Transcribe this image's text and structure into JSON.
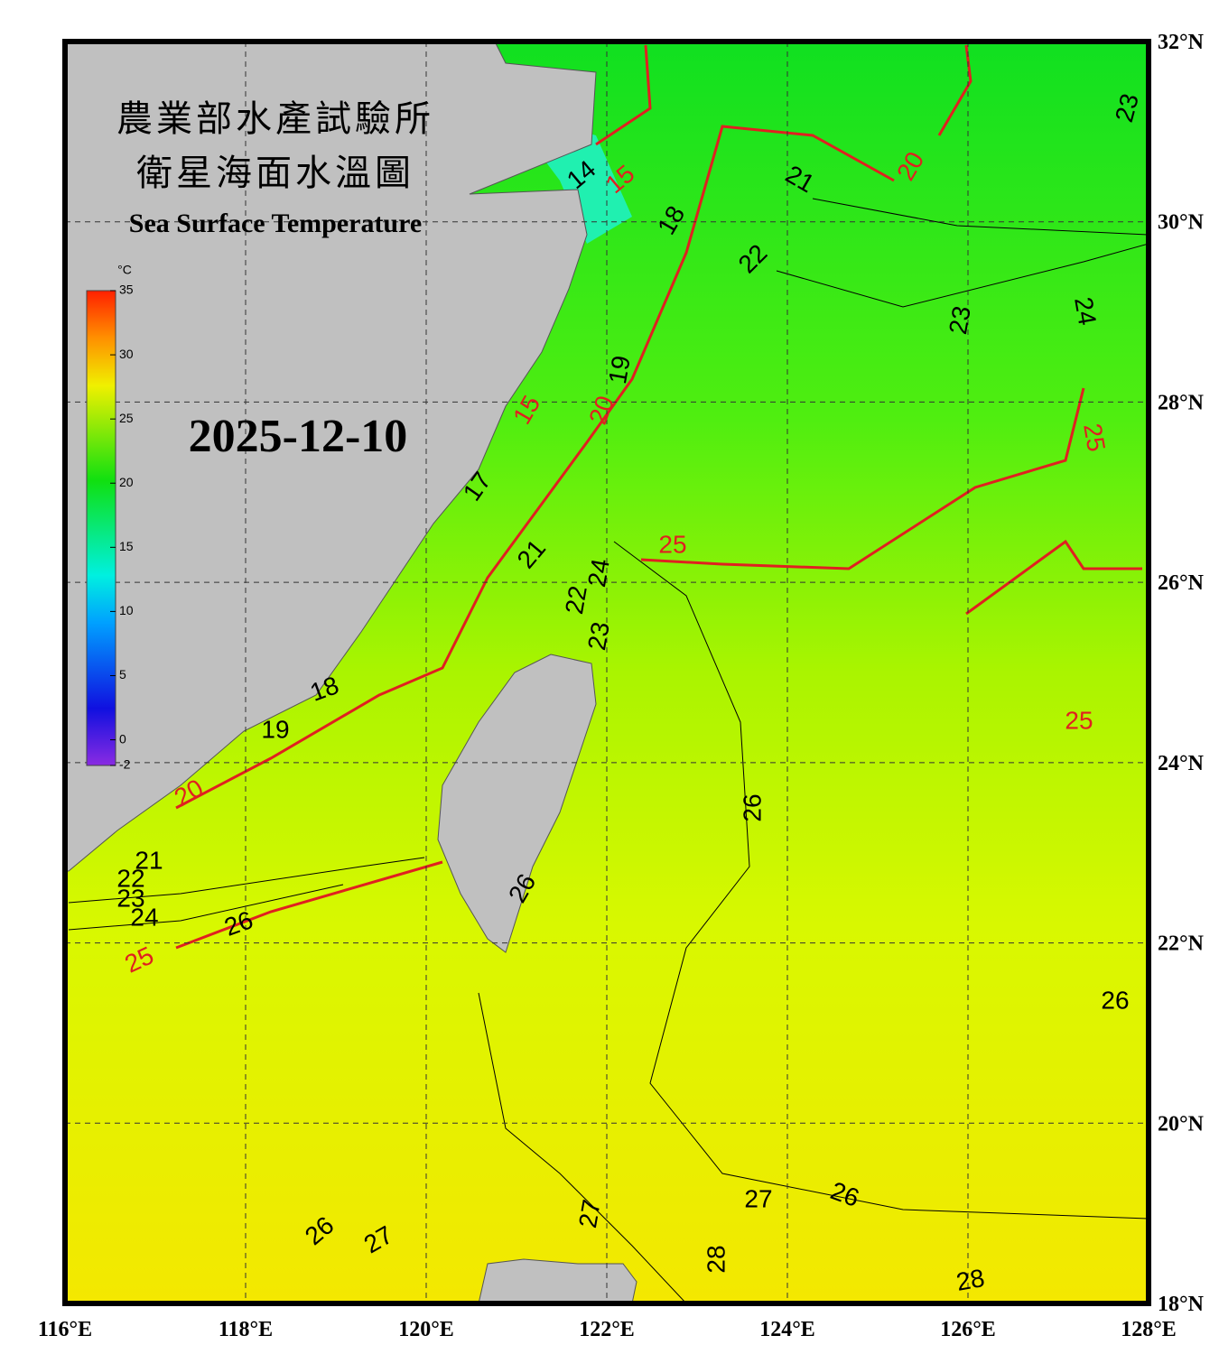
{
  "title_zh_1": "農業部水產試驗所",
  "title_zh_2": "衛星海面水溫圖",
  "title_en": "Sea Surface Temperature",
  "date": "2025-12-10",
  "colorbar": {
    "unit": "°C",
    "lim": [
      -2,
      35
    ],
    "ticks": [
      35,
      30,
      25,
      20,
      15,
      10,
      5,
      0,
      -2
    ]
  },
  "lon_ticks": [
    {
      "value": 116,
      "label": "116°E"
    },
    {
      "value": 118,
      "label": "118°E"
    },
    {
      "value": 120,
      "label": "120°E"
    },
    {
      "value": 122,
      "label": "122°E"
    },
    {
      "value": 124,
      "label": "124°E"
    },
    {
      "value": 126,
      "label": "126°E"
    },
    {
      "value": 128,
      "label": "128°E"
    }
  ],
  "lat_ticks": [
    {
      "value": 32,
      "label": "32°N"
    },
    {
      "value": 30,
      "label": "30°N"
    },
    {
      "value": 28,
      "label": "28°N"
    },
    {
      "value": 26,
      "label": "26°N"
    },
    {
      "value": 24,
      "label": "24°N"
    },
    {
      "value": 22,
      "label": "22°N"
    },
    {
      "value": 20,
      "label": "20°N"
    },
    {
      "value": 18,
      "label": "18°N"
    }
  ],
  "contour_labels": [
    14,
    15,
    18,
    21,
    20,
    23,
    22,
    23,
    24,
    19,
    20,
    25,
    15,
    17,
    21,
    25,
    24,
    22,
    23,
    18,
    19,
    20,
    25,
    26,
    21,
    22,
    23,
    24,
    26,
    25,
    26,
    26,
    27,
    26,
    26,
    27,
    27,
    28,
    28
  ]
}
